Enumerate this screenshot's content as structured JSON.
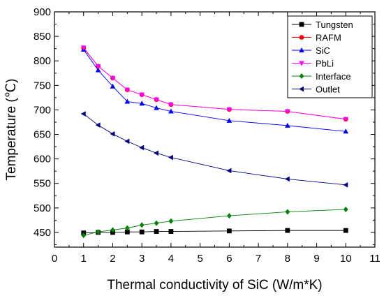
{
  "chart_data": {
    "type": "line",
    "xlabel": "Thermal conductivity of SiC (W/m*K)",
    "ylabel": "Temperature (℃)",
    "xlim": [
      0,
      11
    ],
    "ylim": [
      420,
      900
    ],
    "xticks": [
      0,
      1,
      2,
      3,
      4,
      5,
      6,
      7,
      8,
      9,
      10,
      11
    ],
    "yticks": [
      450,
      500,
      550,
      600,
      650,
      700,
      750,
      800,
      850,
      900
    ],
    "legend_position": "top-right",
    "grid": false,
    "x": [
      1,
      1.5,
      2,
      2.5,
      3,
      3.5,
      4,
      6,
      8,
      10
    ],
    "series": [
      {
        "name": "Tungsten",
        "color": "#000000",
        "marker": "square",
        "values": [
          449,
          450,
          450,
          451,
          451,
          452,
          452,
          453,
          454,
          454
        ]
      },
      {
        "name": "RAFM",
        "color": "#ff0000",
        "marker": "circle",
        "values": [
          826,
          789,
          765,
          741,
          731,
          721,
          711,
          701,
          697,
          681
        ]
      },
      {
        "name": "SiC",
        "color": "#0000ff",
        "marker": "triangle-up",
        "values": [
          823,
          781,
          748,
          717,
          713,
          704,
          697,
          678,
          668,
          656
        ]
      },
      {
        "name": "PbLi",
        "color": "#ff00ff",
        "marker": "triangle-down",
        "values": [
          827,
          789,
          765,
          741,
          731,
          721,
          711,
          701,
          697,
          681
        ]
      },
      {
        "name": "Interface",
        "color": "#008000",
        "marker": "diamond",
        "values": [
          444,
          451,
          455,
          459,
          465,
          469,
          473,
          484,
          492,
          497
        ]
      },
      {
        "name": "Outlet",
        "color": "#000080",
        "marker": "triangle-left",
        "values": [
          692,
          669,
          651,
          636,
          623,
          612,
          603,
          576,
          559,
          547
        ]
      }
    ]
  }
}
